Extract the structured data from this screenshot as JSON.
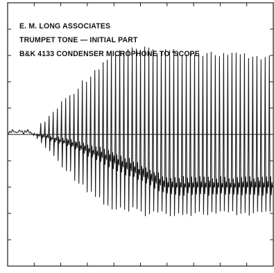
{
  "header": {
    "lines": [
      "E. M. LONG ASSOCIATES",
      "TRUMPET TONE — INITIAL PART",
      "B&K 4133 CONDENSER MICROPHONE TO 'SCOPE"
    ]
  },
  "colors": {
    "trace": "#1a1a1a",
    "frame": "#1a1a1a",
    "background": "#ffffff"
  },
  "chart_data": {
    "type": "line",
    "title": "TRUMPET TONE — INITIAL PART",
    "xlabel": "",
    "ylabel": "",
    "grid": false,
    "axis_divisions": {
      "x": 10,
      "y": 10
    },
    "waveform": {
      "description_free": true,
      "cycles": 58,
      "onset_cycle": 6,
      "baseline_div": 5.0,
      "peak_div_start": 5.1,
      "peak_div_max": 1.8,
      "trough_div_max": 8.1,
      "settled_centre_div": 7.0
    }
  }
}
